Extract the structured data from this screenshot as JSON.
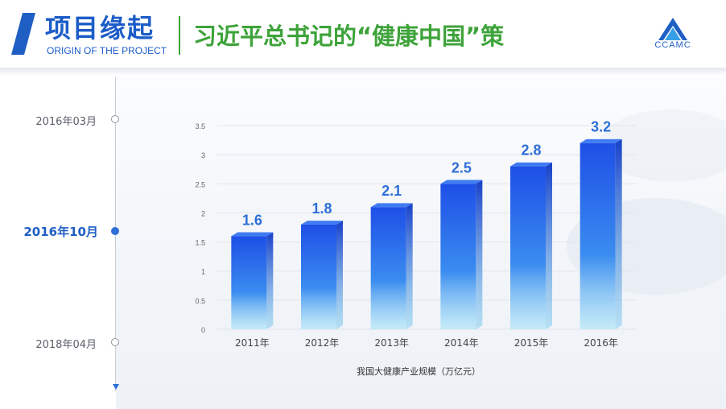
{
  "header": {
    "title": "项目缘起",
    "subtitle": "ORIGIN OF THE PROJECT",
    "headline": "习近平总书记的“健康中国”策",
    "logo_text": "CCAMC"
  },
  "timeline": {
    "items": [
      {
        "label": "2016年03月",
        "active": false
      },
      {
        "label": "2016年10月",
        "active": true
      },
      {
        "label": "2018年04月",
        "active": false
      }
    ]
  },
  "colors": {
    "brand_blue": "#1c5cc8",
    "headline_green": "#3ea33a",
    "bar_top": "#1e4fe6",
    "bar_bottom": "#8fd8f5",
    "label_blue": "#2d6fd6"
  },
  "chart_data": {
    "type": "bar",
    "categories": [
      "2011年",
      "2012年",
      "2013年",
      "2014年",
      "2015年",
      "2016年"
    ],
    "values": [
      1.6,
      1.8,
      2.1,
      2.5,
      2.8,
      3.2
    ],
    "title": "",
    "xlabel": "我国大健康产业规模（万亿元）",
    "ylabel": "",
    "ylim": [
      0,
      3.5
    ],
    "yticks": [
      "0",
      "0.5",
      "1",
      "1.5",
      "2",
      "2.5",
      "3",
      "3.5"
    ],
    "grid": true,
    "data_labels": true
  }
}
